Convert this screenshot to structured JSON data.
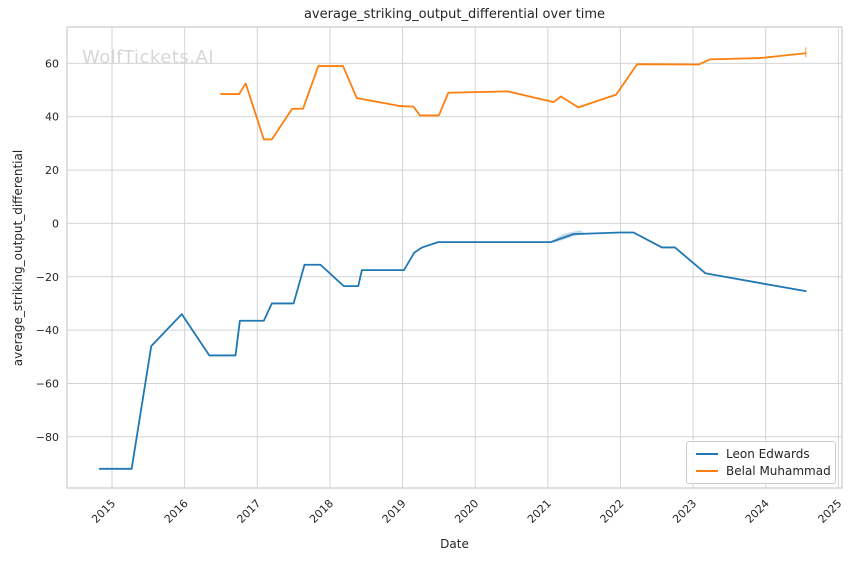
{
  "figure": {
    "title": "average_striking_output_differential over time",
    "watermark": "WolfTickets.AI"
  },
  "chart_data": {
    "type": "line",
    "title": "average_striking_output_differential over time",
    "xlabel": "Date",
    "ylabel": "average_striking_output_differential",
    "xlim": [
      2014.38,
      2025.05
    ],
    "ylim": [
      -99.2,
      73.65
    ],
    "xticks": [
      2015,
      2016,
      2017,
      2018,
      2019,
      2020,
      2021,
      2022,
      2023,
      2024,
      2025
    ],
    "yticks": [
      60,
      40,
      20,
      0,
      -20,
      -40,
      -60,
      -80
    ],
    "grid": true,
    "grid_color": "#d4d4d4",
    "spine_color": "#cbcbcb",
    "legend_position": "lower right",
    "series": [
      {
        "name": "Leon Edwards",
        "color": "#1f77b4",
        "x": [
          2014.83,
          2015.27,
          2015.54,
          2015.96,
          2016.34,
          2016.7,
          2016.76,
          2017.09,
          2017.2,
          2017.5,
          2017.65,
          2017.87,
          2018.19,
          2018.39,
          2018.44,
          2019.02,
          2019.16,
          2019.27,
          2019.49,
          2021.04,
          2021.35,
          2022.0,
          2022.18,
          2022.57,
          2022.75,
          2023.17,
          2023.29,
          2024.55
        ],
        "y": [
          -92,
          -92,
          -46,
          -34,
          -49.5,
          -49.5,
          -36.5,
          -36.5,
          -30,
          -30,
          -15.5,
          -15.5,
          -23.5,
          -23.5,
          -17.5,
          -17.5,
          -11,
          -9,
          -7,
          -7,
          -4,
          -3.4,
          -3.4,
          -9,
          -9,
          -18.7,
          -19.3,
          -25.4
        ]
      },
      {
        "name": "Belal Muhammad",
        "color": "#ff7f0e",
        "x": [
          2016.5,
          2016.75,
          2016.84,
          2017.09,
          2017.2,
          2017.48,
          2017.63,
          2017.84,
          2018.18,
          2018.37,
          2018.97,
          2019.15,
          2019.24,
          2019.5,
          2019.63,
          2020.45,
          2021.08,
          2021.18,
          2021.42,
          2021.94,
          2022.23,
          2023.08,
          2023.23,
          2023.92,
          2024.55
        ],
        "y": [
          48.5,
          48.5,
          52.5,
          31.5,
          31.5,
          43,
          43,
          59,
          59,
          47,
          44,
          43.8,
          40.5,
          40.5,
          49,
          49.5,
          45.5,
          47.6,
          43.5,
          48.3,
          59.7,
          59.6,
          61.5,
          62,
          63.8
        ]
      }
    ],
    "confidence_band": {
      "series": "Leon Edwards",
      "color": "#1f77b4",
      "opacity": 0.25,
      "polygon_x": [
        2021.04,
        2021.2,
        2021.45,
        2021.5,
        2021.3,
        2021.08
      ],
      "polygon_y": [
        -6.8,
        -4.0,
        -2.5,
        -3.6,
        -5.4,
        -7.3
      ]
    },
    "end_whisker": {
      "series": "Belal Muhammad",
      "color": "#ff7f0e",
      "opacity": 0.55,
      "x": 2024.55,
      "y_low": 62.3,
      "y_high": 66.0
    }
  },
  "legend": {
    "items": [
      {
        "label": "Leon Edwards",
        "color": "#1f77b4"
      },
      {
        "label": "Belal Muhammad",
        "color": "#ff7f0e"
      }
    ]
  }
}
